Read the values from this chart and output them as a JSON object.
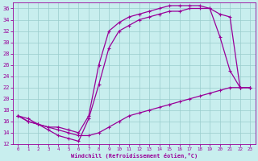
{
  "xlabel": "Windchill (Refroidissement éolien,°C)",
  "xlim": [
    -0.5,
    23.5
  ],
  "ylim": [
    12,
    37
  ],
  "xticks": [
    0,
    1,
    2,
    3,
    4,
    5,
    6,
    7,
    8,
    9,
    10,
    11,
    12,
    13,
    14,
    15,
    16,
    17,
    18,
    19,
    20,
    21,
    22,
    23
  ],
  "yticks": [
    12,
    14,
    16,
    18,
    20,
    22,
    24,
    26,
    28,
    30,
    32,
    34,
    36
  ],
  "bg_color": "#c8eeee",
  "line_color": "#990099",
  "grid_color": "#99cccc",
  "line1_x": [
    0,
    1,
    2,
    3,
    4,
    5,
    6,
    7,
    8,
    9,
    10,
    11,
    12,
    13,
    14,
    15,
    16,
    17,
    18,
    19,
    20,
    21,
    22,
    23
  ],
  "line1_y": [
    17.0,
    16.0,
    15.5,
    14.5,
    13.5,
    13.0,
    12.5,
    16.5,
    22.5,
    29.0,
    32.0,
    33.0,
    34.0,
    34.5,
    35.0,
    35.5,
    35.5,
    36.0,
    36.0,
    36.0,
    31.0,
    25.0,
    22.0,
    22.0
  ],
  "line2_x": [
    0,
    1,
    2,
    3,
    4,
    5,
    6,
    7,
    8,
    9,
    10,
    11,
    12,
    13,
    14,
    15,
    16,
    17,
    18,
    19,
    20,
    21,
    22,
    23
  ],
  "line2_y": [
    17.0,
    16.5,
    15.5,
    15.0,
    15.0,
    14.5,
    14.0,
    17.0,
    26.0,
    32.0,
    33.5,
    34.5,
    35.0,
    35.5,
    36.0,
    36.5,
    36.5,
    36.5,
    36.5,
    36.0,
    35.0,
    34.5,
    22.0,
    22.0
  ],
  "line3_x": [
    0,
    1,
    2,
    3,
    4,
    5,
    6,
    7,
    8,
    9,
    10,
    11,
    12,
    13,
    14,
    15,
    16,
    17,
    18,
    19,
    20,
    21,
    22,
    23
  ],
  "line3_y": [
    17.0,
    16.0,
    15.5,
    15.0,
    14.5,
    14.0,
    13.5,
    13.5,
    14.0,
    15.0,
    16.0,
    17.0,
    17.5,
    18.0,
    18.5,
    19.0,
    19.5,
    20.0,
    20.5,
    21.0,
    21.5,
    22.0,
    22.0,
    22.0
  ]
}
